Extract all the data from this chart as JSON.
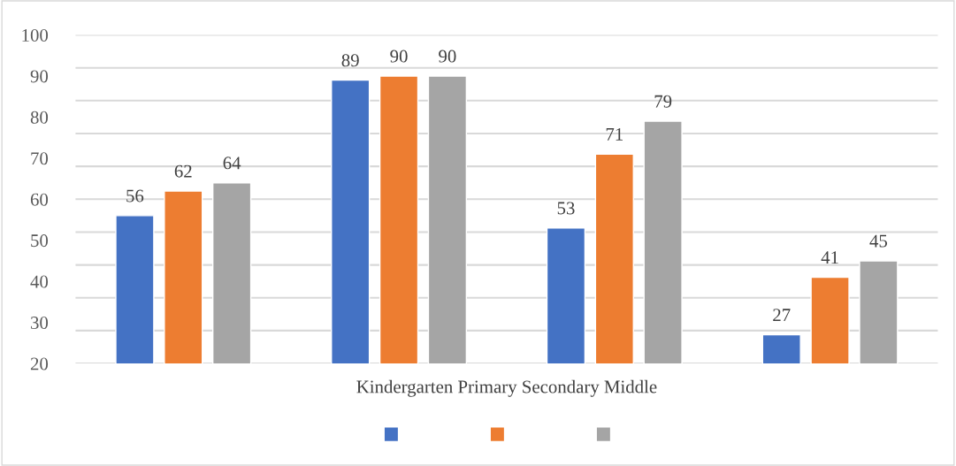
{
  "chart_data": {
    "type": "bar",
    "xlabel": "Kindergarten Primary Secondary Middle",
    "categories": [
      null,
      null,
      null,
      null
    ],
    "series": [
      {
        "color": "#4472c4",
        "values": [
          56,
          89,
          53,
          27
        ]
      },
      {
        "color": "#ed7d31",
        "values": [
          62,
          90,
          71,
          41
        ]
      },
      {
        "color": "#a5a5a5",
        "values": [
          64,
          90,
          79,
          45
        ]
      }
    ],
    "ylim": [
      20,
      100
    ],
    "yticks": [
      {
        "value": 20,
        "label": null
      },
      {
        "value": 28,
        "label": null
      },
      {
        "value": 36,
        "label": null
      },
      {
        "value": 44,
        "label": null
      },
      {
        "value": 52,
        "label": null
      },
      {
        "value": 60,
        "label": null
      },
      {
        "value": 68,
        "label": null
      },
      {
        "value": 76,
        "label": null
      },
      {
        "value": 84,
        "label": null
      },
      {
        "value": 92,
        "label": null
      },
      {
        "value": 100,
        "label": null
      },
      20,
      30,
      40,
      50,
      60,
      70,
      80,
      90,
      100
    ],
    "data_labels": true,
    "grid": "y"
  }
}
